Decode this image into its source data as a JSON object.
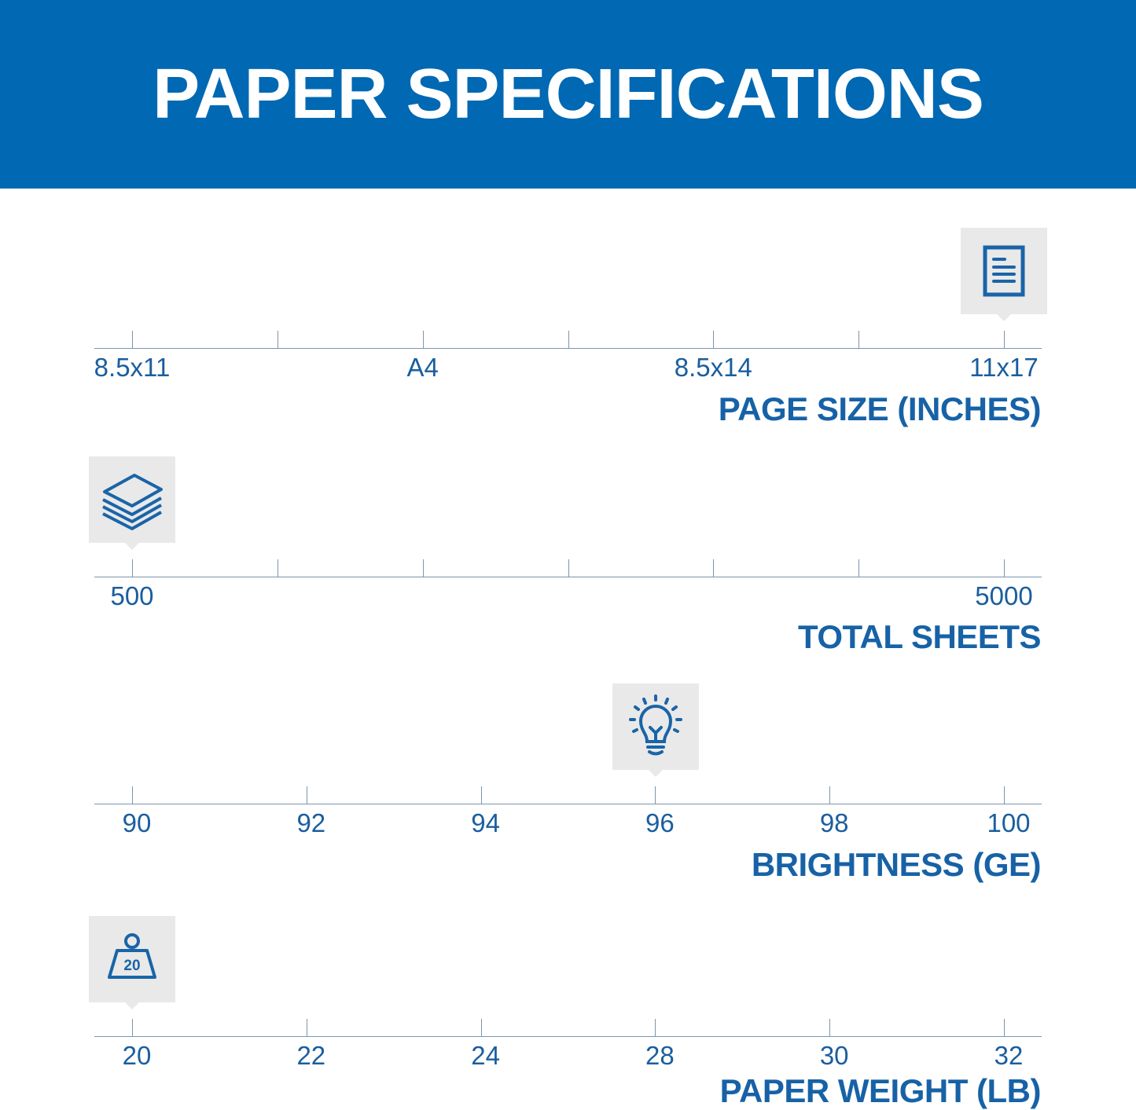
{
  "title": "PAPER SPECIFICATIONS",
  "colors": {
    "header": "#0168b3",
    "text": "#1762a6",
    "icon_bg": "#e9e9e9"
  },
  "sections": [
    {
      "id": "page-size",
      "label": "PAGE SIZE (INCHES)",
      "icon": "document-icon",
      "ticks": [
        "8.5x11",
        "",
        "A4",
        "",
        "8.5x14",
        "",
        "11x17"
      ],
      "selected_index": 6
    },
    {
      "id": "total-sheets",
      "label": "TOTAL SHEETS",
      "icon": "stacked-sheets-icon",
      "ticks": [
        "500",
        "",
        "",
        "",
        "",
        "",
        "5000"
      ],
      "selected_index": 0
    },
    {
      "id": "brightness",
      "label": "BRIGHTNESS (GE)",
      "icon": "lightbulb-icon",
      "ticks": [
        "90",
        "92",
        "94",
        "96",
        "98",
        "100"
      ],
      "selected_index": 3
    },
    {
      "id": "paper-weight",
      "label": "PAPER WEIGHT (LB)",
      "icon": "weight-icon",
      "icon_text": "20",
      "ticks": [
        "20",
        "22",
        "24",
        "28",
        "30",
        "32"
      ],
      "selected_index": 0
    }
  ]
}
